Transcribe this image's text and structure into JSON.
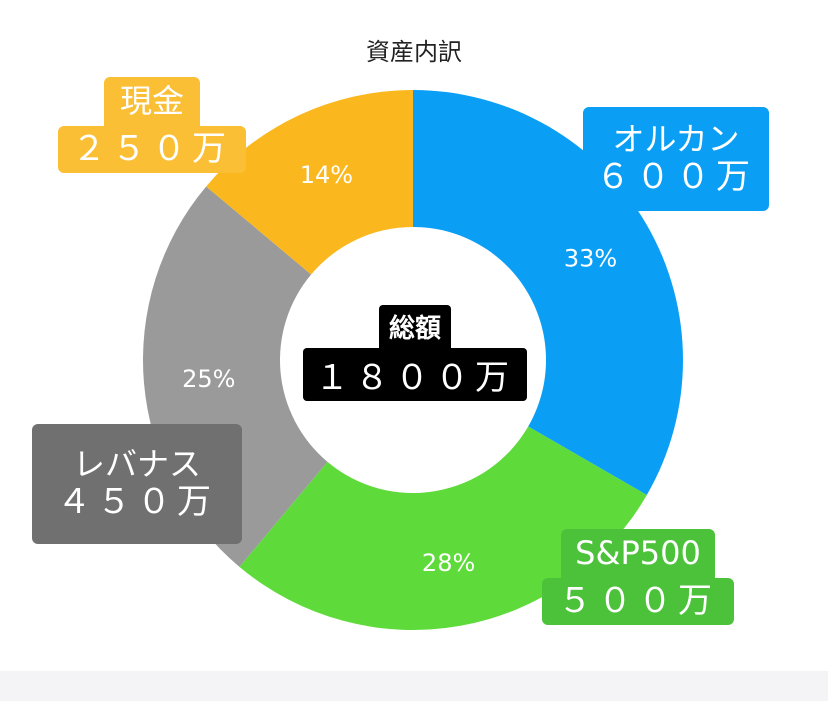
{
  "chart_data": {
    "type": "pie",
    "title": "資産内訳",
    "slices": [
      {
        "name": "オルカン",
        "amount_label": "６００万",
        "value": 600,
        "percent_label": "33%",
        "color": "#0a9ff5",
        "label_color": "#0a9ff5"
      },
      {
        "name": "S&P500",
        "amount_label": "５００万",
        "value": 500,
        "percent_label": "28%",
        "color": "#5edb3a",
        "label_color": "#4cc23a"
      },
      {
        "name": "レバナス",
        "amount_label": "４５０万",
        "value": 450,
        "percent_label": "25%",
        "color": "#9a9a9a",
        "label_color": "#707070"
      },
      {
        "name": "現金",
        "amount_label": "２５０万",
        "value": 250,
        "percent_label": "14%",
        "color": "#fab81e",
        "label_color": "#fbbf35"
      }
    ],
    "center": {
      "name": "総額",
      "amount_label": "１８００万"
    },
    "legend": "none",
    "style": "donut"
  }
}
